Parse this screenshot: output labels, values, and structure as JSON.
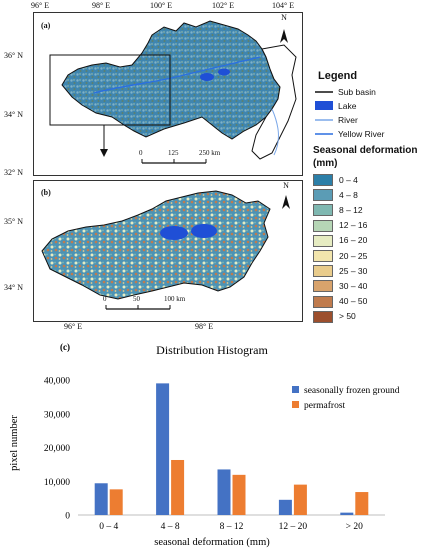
{
  "panel_a": {
    "label": "(a)",
    "top_ticks": [
      "96° E",
      "98° E",
      "100° E",
      "102° E",
      "104° E"
    ],
    "left_ticks": [
      "36° N",
      "34° N",
      "32° N"
    ],
    "north": "N",
    "scale": [
      "0",
      "125",
      "250 km"
    ]
  },
  "panel_b": {
    "label": "(b)",
    "left_ticks": [
      "35° N",
      "34° N"
    ],
    "bottom_ticks": [
      "96° E",
      "98° E"
    ],
    "north": "N",
    "scale": [
      "0",
      "50",
      "100 km"
    ]
  },
  "legend": {
    "title": "Legend",
    "layers": [
      {
        "label": "Sub basin",
        "color": "#111111",
        "symbol": "line"
      },
      {
        "label": "Lake",
        "color": "#1f4fd6",
        "symbol": "fill"
      },
      {
        "label": "River",
        "color": "#7aa7e8",
        "symbol": "line"
      },
      {
        "label": "Yellow River",
        "color": "#2b6fe0",
        "symbol": "line"
      }
    ],
    "deform_title": [
      "Seasonal deformation",
      "(mm)"
    ],
    "classes": [
      {
        "label": "0 – 4",
        "color": "#2c7fa8"
      },
      {
        "label": "4 – 8",
        "color": "#5b9cb5"
      },
      {
        "label": "8 – 12",
        "color": "#7fb8b1"
      },
      {
        "label": "12 – 16",
        "color": "#b6d6b6"
      },
      {
        "label": "16 – 20",
        "color": "#e6ecc2"
      },
      {
        "label": "20 – 25",
        "color": "#f2e5ad"
      },
      {
        "label": "25 – 30",
        "color": "#e9cc8c"
      },
      {
        "label": "30 – 40",
        "color": "#d8a36c"
      },
      {
        "label": "40 – 50",
        "color": "#c07b4d"
      },
      {
        "label": "> 50",
        "color": "#9c4f2d"
      }
    ]
  },
  "chart_data": {
    "type": "bar",
    "panel_label": "(c)",
    "title": "Distribution Histogram",
    "xlabel": "seasonal deformation (mm)",
    "ylabel": "pixel number",
    "categories": [
      "0 – 4",
      "4 – 8",
      "8 – 12",
      "12 – 20",
      "> 20"
    ],
    "series": [
      {
        "name": "seasonally frozen ground",
        "color": "#4472c4",
        "values": [
          9400,
          39000,
          13500,
          4500,
          700
        ]
      },
      {
        "name": "permafrost",
        "color": "#ed7d31",
        "values": [
          7600,
          16300,
          11900,
          9000,
          6800
        ]
      }
    ],
    "ylim": [
      0,
      40000
    ],
    "yticks": [
      "0",
      "10,000",
      "20,000",
      "30,000",
      "40,000"
    ],
    "grid": false,
    "legend_position": "right"
  }
}
